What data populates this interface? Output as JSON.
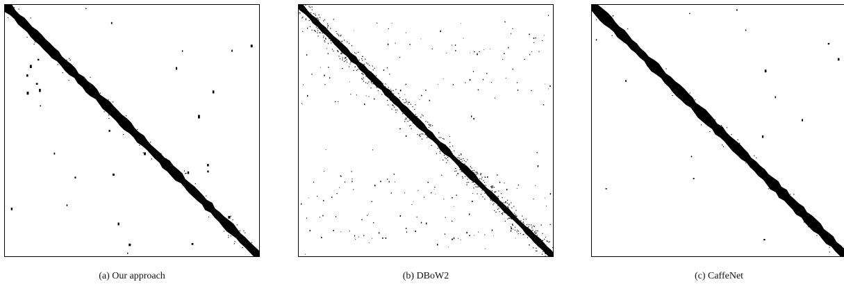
{
  "figure": {
    "panels": [
      {
        "id": "a",
        "caption": "(a)  Our approach"
      },
      {
        "id": "b",
        "caption": "(b)  DBoW2"
      },
      {
        "id": "c",
        "caption": "(c)  CaffeNet"
      }
    ]
  }
}
